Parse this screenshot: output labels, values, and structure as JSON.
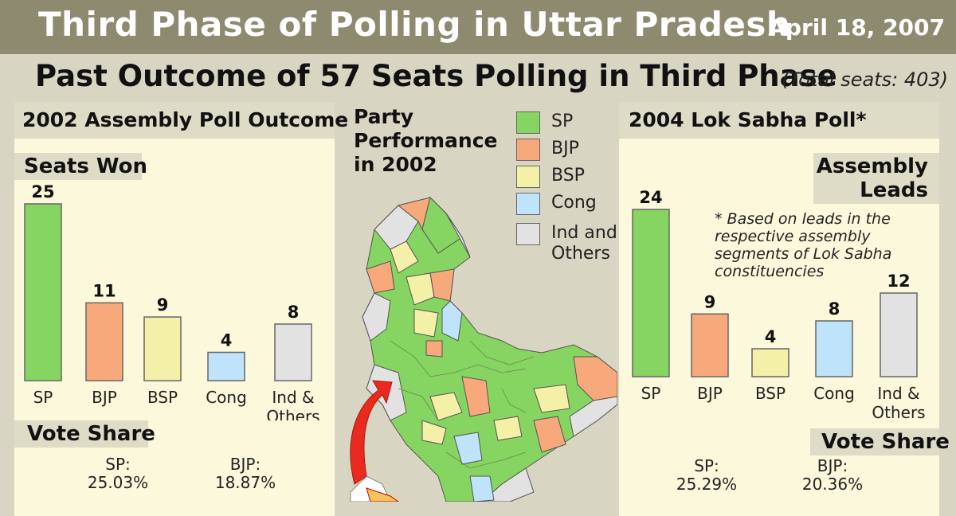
{
  "header": {
    "title": "Third Phase of Polling in Uttar Pradesh",
    "date": "April 18, 2007",
    "subtitle": "Past Outcome of 57 Seats Polling in Third Phase",
    "total_seats": "(Total seats: 403)"
  },
  "left_panel": {
    "heading": "2002 Assembly Poll Outcome",
    "seats_tag": "Seats Won",
    "vote_share_tag": "Vote Share",
    "vote_share": [
      {
        "party": "SP:",
        "value": "25.03%"
      },
      {
        "party": "BJP:",
        "value": "18.87%"
      }
    ]
  },
  "center": {
    "title_lines": [
      "Party",
      "Performance",
      "in 2002"
    ],
    "legend": [
      {
        "label": "SP",
        "color": "#86d461"
      },
      {
        "label": "BJP",
        "color": "#f7a97c"
      },
      {
        "label": "BSP",
        "color": "#f5f0a8"
      },
      {
        "label": "Cong",
        "color": "#bfe3fb"
      },
      {
        "label": "Ind and Others",
        "color": "#e2e2e2"
      }
    ]
  },
  "right_panel": {
    "heading": "2004 Lok Sabha Poll*",
    "leads_tag_line1": "Assembly",
    "leads_tag_line2": "Leads",
    "note": "* Based on leads in the respective assembly segments of Lok Sabha constituencies",
    "vote_share_tag": "Vote Share",
    "vote_share": [
      {
        "party": "SP:",
        "value": "25.29%"
      },
      {
        "party": "BJP:",
        "value": "20.36%"
      }
    ]
  },
  "chart_data": [
    {
      "type": "bar",
      "title": "Seats Won",
      "categories": [
        "SP",
        "BJP",
        "BSP",
        "Cong",
        "Ind & Others"
      ],
      "category_lines": [
        [
          "SP"
        ],
        [
          "BJP"
        ],
        [
          "BSP"
        ],
        [
          "Cong"
        ],
        [
          "Ind &",
          "Others"
        ]
      ],
      "values": [
        25,
        11,
        9,
        4,
        8
      ],
      "colors": [
        "#86d461",
        "#f7a97c",
        "#f5f0a8",
        "#bfe3fb",
        "#e2e2e2"
      ],
      "ylim": [
        0,
        25
      ]
    },
    {
      "type": "bar",
      "title": "Assembly Leads",
      "categories": [
        "SP",
        "BJP",
        "BSP",
        "Cong",
        "Ind & Others"
      ],
      "category_lines": [
        [
          "SP"
        ],
        [
          "BJP"
        ],
        [
          "BSP"
        ],
        [
          "Cong"
        ],
        [
          "Ind &",
          "Others"
        ]
      ],
      "values": [
        24,
        9,
        4,
        8,
        12
      ],
      "colors": [
        "#86d461",
        "#f7a97c",
        "#f5f0a8",
        "#bfe3fb",
        "#e2e2e2"
      ],
      "ylim": [
        0,
        24
      ]
    }
  ]
}
